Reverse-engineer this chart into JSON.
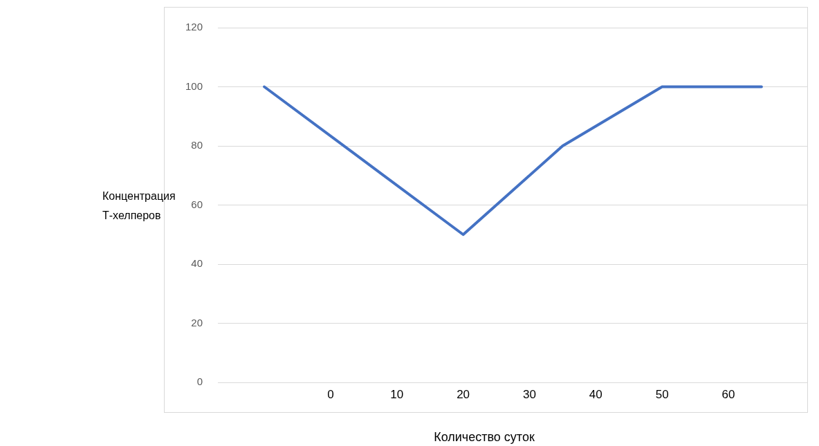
{
  "chart_data": {
    "type": "line",
    "xlabel": "Количество суток",
    "ylabel": "Концентрация Т-хелперов",
    "x": [
      -10,
      20,
      35,
      50,
      65
    ],
    "series": [
      {
        "color": "#4472c4",
        "values": [
          100,
          50,
          80,
          100,
          100
        ]
      }
    ],
    "xlim": [
      -17,
      72
    ],
    "xticks": [
      0,
      10,
      20,
      30,
      40,
      50,
      60
    ],
    "ylim": [
      0,
      120
    ],
    "yticks": [
      0,
      20,
      40,
      60,
      80,
      100,
      120
    ],
    "grid": "y",
    "legend": false,
    "marker": "none",
    "line_style": "solid"
  }
}
